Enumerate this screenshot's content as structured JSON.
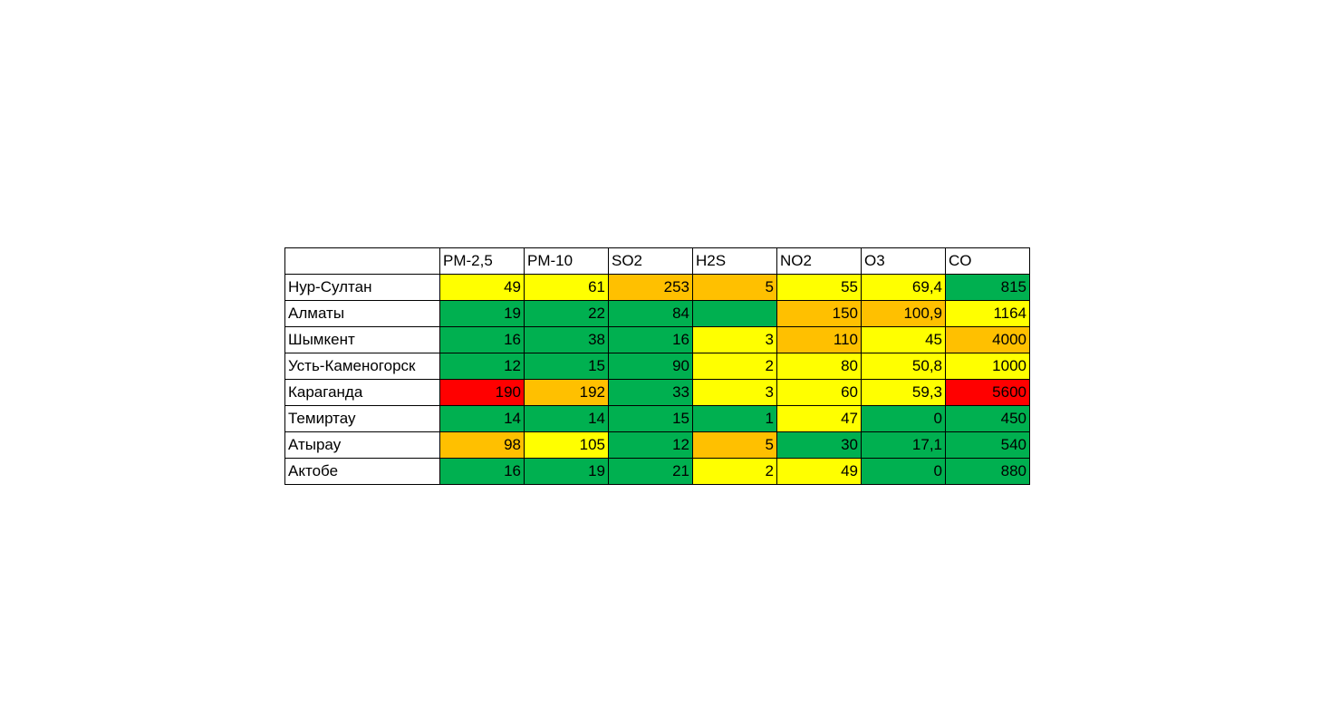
{
  "colors": {
    "green": "#00b050",
    "yellow": "#ffff00",
    "orange": "#ffc000",
    "red": "#ff0000",
    "white": "#ffffff"
  },
  "table": {
    "columns": [
      "PM-2,5",
      "PM-10",
      "SO2",
      "H2S",
      "NO2",
      "O3",
      "CO"
    ],
    "rows": [
      {
        "city": "Нур-Султан",
        "cells": [
          {
            "v": "49",
            "c": "yellow"
          },
          {
            "v": "61",
            "c": "yellow"
          },
          {
            "v": "253",
            "c": "orange"
          },
          {
            "v": "5",
            "c": "orange"
          },
          {
            "v": "55",
            "c": "yellow"
          },
          {
            "v": "69,4",
            "c": "yellow"
          },
          {
            "v": "815",
            "c": "green"
          }
        ]
      },
      {
        "city": "Алматы",
        "cells": [
          {
            "v": "19",
            "c": "green"
          },
          {
            "v": "22",
            "c": "green"
          },
          {
            "v": "84",
            "c": "green"
          },
          {
            "v": "",
            "c": "green"
          },
          {
            "v": "150",
            "c": "orange"
          },
          {
            "v": "100,9",
            "c": "orange"
          },
          {
            "v": "1164",
            "c": "yellow"
          }
        ]
      },
      {
        "city": "Шымкент",
        "cells": [
          {
            "v": "16",
            "c": "green"
          },
          {
            "v": "38",
            "c": "green"
          },
          {
            "v": "16",
            "c": "green"
          },
          {
            "v": "3",
            "c": "yellow"
          },
          {
            "v": "110",
            "c": "orange"
          },
          {
            "v": "45",
            "c": "yellow"
          },
          {
            "v": "4000",
            "c": "orange"
          }
        ]
      },
      {
        "city": "Усть-Каменогорск",
        "cells": [
          {
            "v": "12",
            "c": "green"
          },
          {
            "v": "15",
            "c": "green"
          },
          {
            "v": "90",
            "c": "green"
          },
          {
            "v": "2",
            "c": "yellow"
          },
          {
            "v": "80",
            "c": "yellow"
          },
          {
            "v": "50,8",
            "c": "yellow"
          },
          {
            "v": "1000",
            "c": "yellow"
          }
        ]
      },
      {
        "city": "Караганда",
        "cells": [
          {
            "v": "190",
            "c": "red"
          },
          {
            "v": "192",
            "c": "orange"
          },
          {
            "v": "33",
            "c": "green"
          },
          {
            "v": "3",
            "c": "yellow"
          },
          {
            "v": "60",
            "c": "yellow"
          },
          {
            "v": "59,3",
            "c": "yellow"
          },
          {
            "v": "5600",
            "c": "red"
          }
        ]
      },
      {
        "city": "Темиртау",
        "cells": [
          {
            "v": "14",
            "c": "green"
          },
          {
            "v": "14",
            "c": "green"
          },
          {
            "v": "15",
            "c": "green"
          },
          {
            "v": "1",
            "c": "green"
          },
          {
            "v": "47",
            "c": "yellow"
          },
          {
            "v": "0",
            "c": "green"
          },
          {
            "v": "450",
            "c": "green"
          }
        ]
      },
      {
        "city": "Атырау",
        "cells": [
          {
            "v": "98",
            "c": "orange"
          },
          {
            "v": "105",
            "c": "yellow"
          },
          {
            "v": "12",
            "c": "green"
          },
          {
            "v": "5",
            "c": "orange"
          },
          {
            "v": "30",
            "c": "green"
          },
          {
            "v": "17,1",
            "c": "green"
          },
          {
            "v": "540",
            "c": "green"
          }
        ]
      },
      {
        "city": "Актобе",
        "cells": [
          {
            "v": "16",
            "c": "green"
          },
          {
            "v": "19",
            "c": "green"
          },
          {
            "v": "21",
            "c": "green"
          },
          {
            "v": "2",
            "c": "yellow"
          },
          {
            "v": "49",
            "c": "yellow"
          },
          {
            "v": "0",
            "c": "green"
          },
          {
            "v": "880",
            "c": "green"
          }
        ]
      }
    ]
  }
}
